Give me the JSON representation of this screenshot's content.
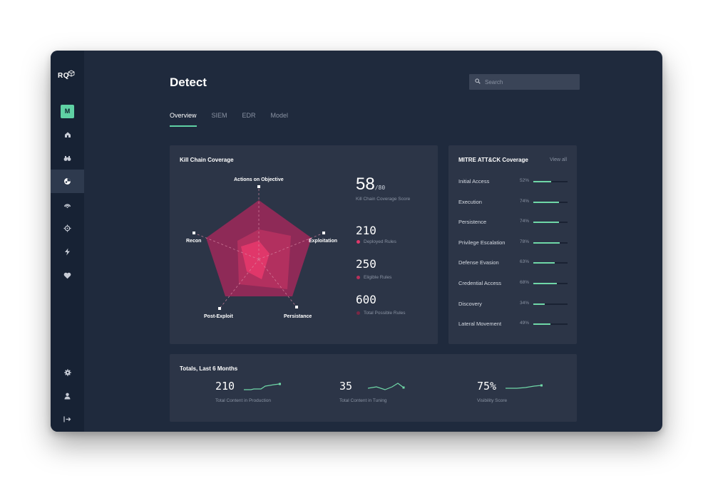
{
  "app": {
    "logo": "RQ",
    "avatar_letter": "M",
    "title": "Detect"
  },
  "search": {
    "placeholder": "Search"
  },
  "sidebar": {
    "items": [
      {
        "icon": "home-icon"
      },
      {
        "icon": "binoculars-icon"
      },
      {
        "icon": "detect-icon",
        "active": true
      },
      {
        "icon": "broadcast-icon"
      },
      {
        "icon": "crosshair-icon"
      },
      {
        "icon": "lightning-icon"
      },
      {
        "icon": "heart-icon"
      }
    ],
    "bottom": [
      {
        "icon": "settings-gear-icon"
      },
      {
        "icon": "user-icon"
      },
      {
        "icon": "logout-icon"
      }
    ]
  },
  "tabs": [
    {
      "label": "Overview",
      "active": true
    },
    {
      "label": "SIEM"
    },
    {
      "label": "EDR"
    },
    {
      "label": "Model"
    }
  ],
  "kill_chain": {
    "title": "Kill Chain Coverage",
    "axes": [
      "Actions on Objective",
      "Exploitation",
      "Persistance",
      "Post-Exploit",
      "Recon"
    ],
    "score": "58",
    "score_denominator": "/80",
    "score_label": "Kill Chain Coverage Score",
    "stats": [
      {
        "value": "210",
        "label": "Deployed Rules",
        "color": "#e0396b"
      },
      {
        "value": "250",
        "label": "Eligible Rules",
        "color": "#b8305a"
      },
      {
        "value": "600",
        "label": "Total Possible Rules",
        "color": "#7a2745"
      }
    ],
    "colors": {
      "outer": "#8e2a57",
      "mid": "#b2305f",
      "inner": "#e0376a"
    }
  },
  "mitre": {
    "title": "MITRE ATT&CK Coverage",
    "view_all": "View all",
    "rows": [
      {
        "label": "Initial Access",
        "pct": "52%",
        "value": 0.52
      },
      {
        "label": "Execution",
        "pct": "74%",
        "value": 0.74
      },
      {
        "label": "Persistence",
        "pct": "74%",
        "value": 0.74
      },
      {
        "label": "Privilege Escalation",
        "pct": "78%",
        "value": 0.78
      },
      {
        "label": "Defense Evasion",
        "pct": "63%",
        "value": 0.63
      },
      {
        "label": "Credential Access",
        "pct": "68%",
        "value": 0.68
      },
      {
        "label": "Discovery",
        "pct": "34%",
        "value": 0.34
      },
      {
        "label": "Lateral Movement",
        "pct": "49%",
        "value": 0.49
      }
    ]
  },
  "totals": {
    "title": "Totals, Last 6 Months",
    "items": [
      {
        "value": "210",
        "label": "Total Content in Production"
      },
      {
        "value": "35",
        "label": "Total Content in Tuning"
      },
      {
        "value": "75%",
        "label": "Visibility Score"
      }
    ]
  },
  "colors": {
    "accent": "#5fd1a4",
    "bg": "#1f2a3d",
    "card": "#2c3547"
  }
}
